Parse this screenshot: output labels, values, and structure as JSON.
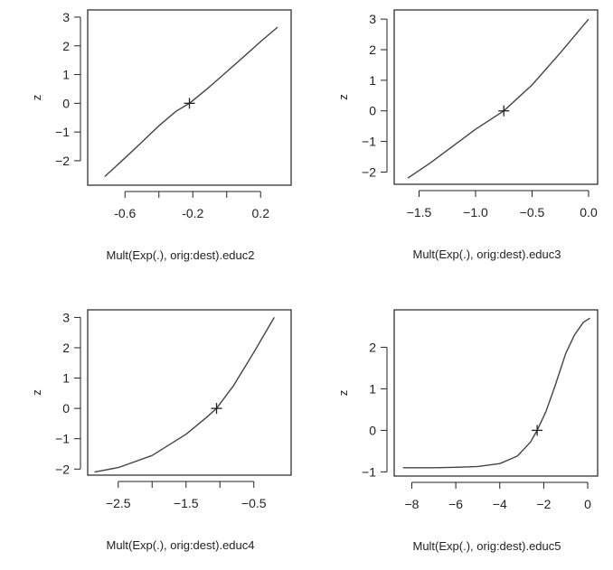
{
  "chart_data": [
    {
      "type": "line",
      "xlabel": "Mult(Exp(.), orig:dest).educ2",
      "ylabel": "z",
      "xlim": [
        -0.82,
        0.38
      ],
      "ylim": [
        -2.85,
        3.25
      ],
      "xticks": [
        -0.6,
        -0.4,
        -0.2,
        0.0,
        0.2
      ],
      "xtick_labels": [
        "-0.6",
        "",
        "-0.2",
        "",
        "0.2"
      ],
      "yticks": [
        -2,
        -1,
        0,
        1,
        2,
        3
      ],
      "ytick_labels": [
        "−2",
        "−1",
        "0",
        "1",
        "2",
        "3"
      ],
      "series": [
        {
          "x": [
            -0.72,
            -0.6,
            -0.5,
            -0.4,
            -0.3,
            -0.22,
            -0.1,
            0.0,
            0.1,
            0.2,
            0.3
          ],
          "y": [
            -2.55,
            -1.9,
            -1.35,
            -0.78,
            -0.28,
            0.0,
            0.58,
            1.1,
            1.62,
            2.15,
            2.65
          ]
        }
      ],
      "marker": {
        "x": -0.22,
        "y": 0.0,
        "symbol": "+"
      }
    },
    {
      "type": "line",
      "xlabel": "Mult(Exp(.), orig:dest).educ3",
      "ylabel": "z",
      "xlim": [
        -1.72,
        0.08
      ],
      "ylim": [
        -2.4,
        3.3
      ],
      "xticks": [
        -1.5,
        -1.0,
        -0.5,
        0.0
      ],
      "xtick_labels": [
        "−1.5",
        "−1.0",
        "−0.5",
        "0.0"
      ],
      "yticks": [
        -2,
        -1,
        0,
        1,
        2,
        3
      ],
      "ytick_labels": [
        "−2",
        "−1",
        "0",
        "1",
        "2",
        "3"
      ],
      "series": [
        {
          "x": [
            -1.6,
            -1.4,
            -1.2,
            -1.0,
            -0.75,
            -0.5,
            -0.25,
            0.0
          ],
          "y": [
            -2.2,
            -1.7,
            -1.15,
            -0.6,
            0.0,
            0.85,
            1.9,
            3.0
          ]
        }
      ],
      "marker": {
        "x": -0.75,
        "y": 0.0,
        "symbol": "+"
      }
    },
    {
      "type": "line",
      "xlabel": "Mult(Exp(.), orig:dest).educ4",
      "ylabel": "z",
      "xlim": [
        -2.95,
        0.05
      ],
      "ylim": [
        -2.2,
        3.25
      ],
      "xticks": [
        -2.5,
        -2.0,
        -1.5,
        -1.0,
        -0.5
      ],
      "xtick_labels": [
        "−2.5",
        "",
        "−1.5",
        "",
        "−0.5"
      ],
      "yticks": [
        -2,
        -1,
        0,
        1,
        2,
        3
      ],
      "ytick_labels": [
        "−2",
        "−1",
        "0",
        "1",
        "2",
        "3"
      ],
      "series": [
        {
          "x": [
            -2.85,
            -2.5,
            -2.0,
            -1.5,
            -1.2,
            -1.05,
            -0.8,
            -0.5,
            -0.2
          ],
          "y": [
            -2.1,
            -1.95,
            -1.55,
            -0.85,
            -0.3,
            0.0,
            0.75,
            1.85,
            3.0
          ]
        }
      ],
      "marker": {
        "x": -1.05,
        "y": 0.0,
        "symbol": "+"
      }
    },
    {
      "type": "line",
      "xlabel": "Mult(Exp(.), orig:dest).educ5",
      "ylabel": "z",
      "xlim": [
        -8.8,
        0.45
      ],
      "ylim": [
        -1.1,
        2.9
      ],
      "xticks": [
        -8,
        -6,
        -4,
        -2,
        0
      ],
      "xtick_labels": [
        "−8",
        "−6",
        "−4",
        "−2",
        "0"
      ],
      "yticks": [
        -1,
        0,
        1,
        2
      ],
      "ytick_labels": [
        "−1",
        "0",
        "1",
        "2"
      ],
      "series": [
        {
          "x": [
            -8.4,
            -7,
            -6,
            -5,
            -4,
            -3.2,
            -2.6,
            -2.3,
            -1.9,
            -1.5,
            -1.0,
            -0.6,
            -0.2,
            0.1
          ],
          "y": [
            -0.9,
            -0.9,
            -0.89,
            -0.87,
            -0.8,
            -0.62,
            -0.28,
            0.0,
            0.45,
            1.05,
            1.85,
            2.3,
            2.6,
            2.7
          ]
        }
      ],
      "marker": {
        "x": -2.3,
        "y": 0.0,
        "symbol": "+"
      }
    }
  ]
}
